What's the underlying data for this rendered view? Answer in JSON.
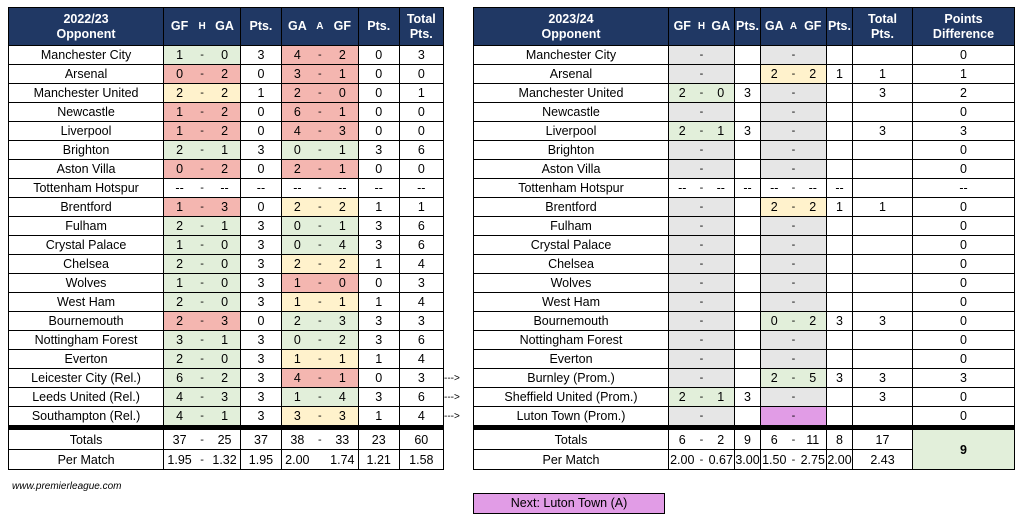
{
  "left": {
    "headers": {
      "season": "2022/23",
      "opponent": "Opponent",
      "gf": "GF",
      "h": "H",
      "ga": "GA",
      "pts": "Pts.",
      "ga2": "GA",
      "a": "A",
      "gf2": "GF",
      "pts2": "Pts.",
      "total1": "Total",
      "total2": "Pts."
    },
    "rows": [
      {
        "team": "Manchester City",
        "hgf": "1",
        "hsep": "-",
        "hga": "0",
        "hpts": "3",
        "aga": "4",
        "asep": "-",
        "agf": "2",
        "apts": "0",
        "tot": "3",
        "hc": "g",
        "ac": "rd"
      },
      {
        "team": "Arsenal",
        "hgf": "0",
        "hsep": "-",
        "hga": "2",
        "hpts": "0",
        "aga": "3",
        "asep": "-",
        "agf": "1",
        "apts": "0",
        "tot": "0",
        "hc": "rd",
        "ac": "rd"
      },
      {
        "team": "Manchester United",
        "hgf": "2",
        "hsep": "-",
        "hga": "2",
        "hpts": "1",
        "aga": "2",
        "asep": "-",
        "agf": "0",
        "apts": "0",
        "tot": "1",
        "hc": "y",
        "ac": "rd"
      },
      {
        "team": "Newcastle",
        "hgf": "1",
        "hsep": "-",
        "hga": "2",
        "hpts": "0",
        "aga": "6",
        "asep": "-",
        "agf": "1",
        "apts": "0",
        "tot": "0",
        "hc": "rd",
        "ac": "rd"
      },
      {
        "team": "Liverpool",
        "hgf": "1",
        "hsep": "-",
        "hga": "2",
        "hpts": "0",
        "aga": "4",
        "asep": "-",
        "agf": "3",
        "apts": "0",
        "tot": "0",
        "hc": "rd",
        "ac": "rd"
      },
      {
        "team": "Brighton",
        "hgf": "2",
        "hsep": "-",
        "hga": "1",
        "hpts": "3",
        "aga": "0",
        "asep": "-",
        "agf": "1",
        "apts": "3",
        "tot": "6",
        "hc": "g",
        "ac": "g"
      },
      {
        "team": "Aston Villa",
        "hgf": "0",
        "hsep": "-",
        "hga": "2",
        "hpts": "0",
        "aga": "2",
        "asep": "-",
        "agf": "1",
        "apts": "0",
        "tot": "0",
        "hc": "rd",
        "ac": "rd"
      },
      {
        "team": "Tottenham Hotspur",
        "hgf": "--",
        "hsep": "-",
        "hga": "--",
        "hpts": "--",
        "aga": "--",
        "asep": "-",
        "agf": "--",
        "apts": "--",
        "tot": "--",
        "hc": "",
        "ac": ""
      },
      {
        "team": "Brentford",
        "hgf": "1",
        "hsep": "-",
        "hga": "3",
        "hpts": "0",
        "aga": "2",
        "asep": "-",
        "agf": "2",
        "apts": "1",
        "tot": "1",
        "hc": "rd",
        "ac": "y"
      },
      {
        "team": "Fulham",
        "hgf": "2",
        "hsep": "-",
        "hga": "1",
        "hpts": "3",
        "aga": "0",
        "asep": "-",
        "agf": "1",
        "apts": "3",
        "tot": "6",
        "hc": "g",
        "ac": "g"
      },
      {
        "team": "Crystal Palace",
        "hgf": "1",
        "hsep": "-",
        "hga": "0",
        "hpts": "3",
        "aga": "0",
        "asep": "-",
        "agf": "4",
        "apts": "3",
        "tot": "6",
        "hc": "g",
        "ac": "g"
      },
      {
        "team": "Chelsea",
        "hgf": "2",
        "hsep": "-",
        "hga": "0",
        "hpts": "3",
        "aga": "2",
        "asep": "-",
        "agf": "2",
        "apts": "1",
        "tot": "4",
        "hc": "g",
        "ac": "y"
      },
      {
        "team": "Wolves",
        "hgf": "1",
        "hsep": "-",
        "hga": "0",
        "hpts": "3",
        "aga": "1",
        "asep": "-",
        "agf": "0",
        "apts": "0",
        "tot": "3",
        "hc": "g",
        "ac": "rd"
      },
      {
        "team": "West Ham",
        "hgf": "2",
        "hsep": "-",
        "hga": "0",
        "hpts": "3",
        "aga": "1",
        "asep": "-",
        "agf": "1",
        "apts": "1",
        "tot": "4",
        "hc": "g",
        "ac": "y"
      },
      {
        "team": "Bournemouth",
        "hgf": "2",
        "hsep": "-",
        "hga": "3",
        "hpts": "0",
        "aga": "2",
        "asep": "-",
        "agf": "3",
        "apts": "3",
        "tot": "3",
        "hc": "rd",
        "ac": "g"
      },
      {
        "team": "Nottingham Forest",
        "hgf": "3",
        "hsep": "-",
        "hga": "1",
        "hpts": "3",
        "aga": "0",
        "asep": "-",
        "agf": "2",
        "apts": "3",
        "tot": "6",
        "hc": "g",
        "ac": "g"
      },
      {
        "team": "Everton",
        "hgf": "2",
        "hsep": "-",
        "hga": "0",
        "hpts": "3",
        "aga": "1",
        "asep": "-",
        "agf": "1",
        "apts": "1",
        "tot": "4",
        "hc": "g",
        "ac": "y"
      },
      {
        "team": "Leicester City (Rel.)",
        "hgf": "6",
        "hsep": "-",
        "hga": "2",
        "hpts": "3",
        "aga": "4",
        "asep": "-",
        "agf": "1",
        "apts": "0",
        "tot": "3",
        "hc": "g",
        "ac": "rd"
      },
      {
        "team": "Leeds United (Rel.)",
        "hgf": "4",
        "hsep": "-",
        "hga": "3",
        "hpts": "3",
        "aga": "1",
        "asep": "-",
        "agf": "4",
        "apts": "3",
        "tot": "6",
        "hc": "g",
        "ac": "g"
      },
      {
        "team": "Southampton (Rel.)",
        "hgf": "4",
        "hsep": "-",
        "hga": "1",
        "hpts": "3",
        "aga": "3",
        "asep": "-",
        "agf": "3",
        "apts": "1",
        "tot": "4",
        "hc": "g",
        "ac": "y"
      }
    ],
    "totals": {
      "label": "Totals",
      "hgf": "37",
      "hsep": "-",
      "hga": "25",
      "hpts": "37",
      "aga": "38",
      "asep": "-",
      "agf": "33",
      "apts": "23",
      "tot": "60"
    },
    "per_match": {
      "label": "Per Match",
      "hgf": "1.95",
      "hsep": "-",
      "hga": "1.32",
      "hpts": "1.95",
      "aga": "2.00",
      "asep": "",
      "agf": "1.74",
      "apts": "1.21",
      "tot": "1.58"
    }
  },
  "right": {
    "headers": {
      "season": "2023/24",
      "opponent": "Opponent",
      "gf": "GF",
      "h": "H",
      "ga": "GA",
      "pts": "Pts.",
      "ga2": "GA",
      "a": "A",
      "gf2": "GF",
      "pts2": "Pts.",
      "total1": "Total",
      "total2": "Pts.",
      "diff1": "Points",
      "diff2": "Difference"
    },
    "rows": [
      {
        "team": "Manchester City",
        "hgf": "",
        "hsep": "-",
        "hga": "",
        "hpts": "",
        "aga": "",
        "asep": "-",
        "agf": "",
        "apts": "",
        "tot": "",
        "diff": "0",
        "hc": "gr",
        "ac": "gr"
      },
      {
        "team": "Arsenal",
        "hgf": "",
        "hsep": "-",
        "hga": "",
        "hpts": "",
        "aga": "2",
        "asep": "-",
        "agf": "2",
        "apts": "1",
        "tot": "1",
        "diff": "1",
        "hc": "gr",
        "ac": "y"
      },
      {
        "team": "Manchester United",
        "hgf": "2",
        "hsep": "-",
        "hga": "0",
        "hpts": "3",
        "aga": "",
        "asep": "-",
        "agf": "",
        "apts": "",
        "tot": "3",
        "diff": "2",
        "hc": "g",
        "ac": "gr"
      },
      {
        "team": "Newcastle",
        "hgf": "",
        "hsep": "-",
        "hga": "",
        "hpts": "",
        "aga": "",
        "asep": "-",
        "agf": "",
        "apts": "",
        "tot": "",
        "diff": "0",
        "hc": "gr",
        "ac": "gr"
      },
      {
        "team": "Liverpool",
        "hgf": "2",
        "hsep": "-",
        "hga": "1",
        "hpts": "3",
        "aga": "",
        "asep": "-",
        "agf": "",
        "apts": "",
        "tot": "3",
        "diff": "3",
        "hc": "g",
        "ac": "gr"
      },
      {
        "team": "Brighton",
        "hgf": "",
        "hsep": "-",
        "hga": "",
        "hpts": "",
        "aga": "",
        "asep": "-",
        "agf": "",
        "apts": "",
        "tot": "",
        "diff": "0",
        "hc": "gr",
        "ac": "gr"
      },
      {
        "team": "Aston Villa",
        "hgf": "",
        "hsep": "-",
        "hga": "",
        "hpts": "",
        "aga": "",
        "asep": "-",
        "agf": "",
        "apts": "",
        "tot": "",
        "diff": "0",
        "hc": "gr",
        "ac": "gr"
      },
      {
        "team": "Tottenham Hotspur",
        "hgf": "--",
        "hsep": "-",
        "hga": "--",
        "hpts": "--",
        "aga": "--",
        "asep": "-",
        "agf": "--",
        "apts": "--",
        "tot": "",
        "diff": "--",
        "hc": "",
        "ac": ""
      },
      {
        "team": "Brentford",
        "hgf": "",
        "hsep": "-",
        "hga": "",
        "hpts": "",
        "aga": "2",
        "asep": "-",
        "agf": "2",
        "apts": "1",
        "tot": "1",
        "diff": "0",
        "hc": "gr",
        "ac": "y"
      },
      {
        "team": "Fulham",
        "hgf": "",
        "hsep": "-",
        "hga": "",
        "hpts": "",
        "aga": "",
        "asep": "-",
        "agf": "",
        "apts": "",
        "tot": "",
        "diff": "0",
        "hc": "gr",
        "ac": "gr"
      },
      {
        "team": "Crystal Palace",
        "hgf": "",
        "hsep": "-",
        "hga": "",
        "hpts": "",
        "aga": "",
        "asep": "-",
        "agf": "",
        "apts": "",
        "tot": "",
        "diff": "0",
        "hc": "gr",
        "ac": "gr"
      },
      {
        "team": "Chelsea",
        "hgf": "",
        "hsep": "-",
        "hga": "",
        "hpts": "",
        "aga": "",
        "asep": "-",
        "agf": "",
        "apts": "",
        "tot": "",
        "diff": "0",
        "hc": "gr",
        "ac": "gr"
      },
      {
        "team": "Wolves",
        "hgf": "",
        "hsep": "-",
        "hga": "",
        "hpts": "",
        "aga": "",
        "asep": "-",
        "agf": "",
        "apts": "",
        "tot": "",
        "diff": "0",
        "hc": "gr",
        "ac": "gr"
      },
      {
        "team": "West Ham",
        "hgf": "",
        "hsep": "-",
        "hga": "",
        "hpts": "",
        "aga": "",
        "asep": "-",
        "agf": "",
        "apts": "",
        "tot": "",
        "diff": "0",
        "hc": "gr",
        "ac": "gr"
      },
      {
        "team": "Bournemouth",
        "hgf": "",
        "hsep": "-",
        "hga": "",
        "hpts": "",
        "aga": "0",
        "asep": "-",
        "agf": "2",
        "apts": "3",
        "tot": "3",
        "diff": "0",
        "hc": "gr",
        "ac": "g"
      },
      {
        "team": "Nottingham Forest",
        "hgf": "",
        "hsep": "-",
        "hga": "",
        "hpts": "",
        "aga": "",
        "asep": "-",
        "agf": "",
        "apts": "",
        "tot": "",
        "diff": "0",
        "hc": "gr",
        "ac": "gr"
      },
      {
        "team": "Everton",
        "hgf": "",
        "hsep": "-",
        "hga": "",
        "hpts": "",
        "aga": "",
        "asep": "-",
        "agf": "",
        "apts": "",
        "tot": "",
        "diff": "0",
        "hc": "gr",
        "ac": "gr"
      },
      {
        "team": "Burnley (Prom.)",
        "hgf": "",
        "hsep": "-",
        "hga": "",
        "hpts": "",
        "aga": "2",
        "asep": "-",
        "agf": "5",
        "apts": "3",
        "tot": "3",
        "diff": "3",
        "hc": "gr",
        "ac": "g"
      },
      {
        "team": "Sheffield United (Prom.)",
        "hgf": "2",
        "hsep": "-",
        "hga": "1",
        "hpts": "3",
        "aga": "",
        "asep": "-",
        "agf": "",
        "apts": "",
        "tot": "3",
        "diff": "0",
        "hc": "g",
        "ac": "gr"
      },
      {
        "team": "Luton Town (Prom.)",
        "hgf": "",
        "hsep": "-",
        "hga": "",
        "hpts": "",
        "aga": "",
        "asep": "-",
        "agf": "",
        "apts": "",
        "tot": "",
        "diff": "0",
        "hc": "gr",
        "ac": "pk"
      }
    ],
    "totals": {
      "label": "Totals",
      "hgf": "6",
      "hsep": "-",
      "hga": "2",
      "hpts": "9",
      "aga": "6",
      "asep": "-",
      "agf": "11",
      "apts": "8",
      "tot": "17",
      "diff": "9"
    },
    "per_match": {
      "label": "Per Match",
      "hgf": "2.00",
      "hsep": "-",
      "hga": "0.67",
      "hpts": "3.00",
      "aga": "1.50",
      "asep": "-",
      "agf": "2.75",
      "apts": "2.00",
      "tot": "2.43"
    }
  },
  "arrows": [
    {
      "text": "--->"
    },
    {
      "text": "--->"
    },
    {
      "text": "--->"
    }
  ],
  "source": "www.premierleague.com",
  "next": "Next: Luton Town (A)",
  "colors": {
    "header_bg": "#203864",
    "win": "#e2efda",
    "loss": "#f4b6b0",
    "draw": "#fff2cc",
    "unplayed": "#e6e6e6",
    "next_fixture": "#e19ce6"
  }
}
